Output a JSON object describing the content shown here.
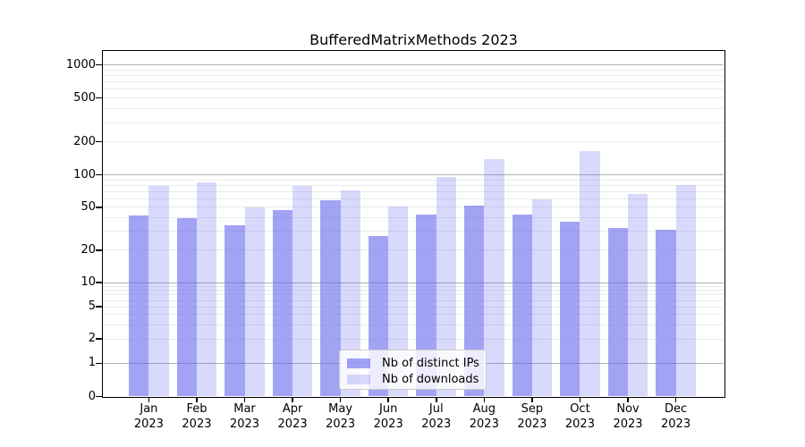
{
  "title": "BufferedMatrixMethods 2023",
  "chart_data": {
    "type": "bar",
    "title": "BufferedMatrixMethods 2023",
    "scale": "pseudo-log",
    "categories": [
      "Jan",
      "Feb",
      "Mar",
      "Apr",
      "May",
      "Jun",
      "Jul",
      "Aug",
      "Sep",
      "Oct",
      "Nov",
      "Dec"
    ],
    "year": "2023",
    "series": [
      {
        "name": "Nb of distinct IPs",
        "color": "rgba(102,102,238,0.6)",
        "values": [
          42,
          40,
          34,
          47,
          58,
          27,
          43,
          52,
          43,
          37,
          32,
          31
        ]
      },
      {
        "name": "Nb of downloads",
        "color": "rgba(102,102,238,0.25)",
        "values": [
          79,
          86,
          50,
          79,
          72,
          51,
          95,
          138,
          59,
          165,
          66,
          80
        ]
      }
    ],
    "yticks": [
      0,
      1,
      2,
      5,
      10,
      20,
      50,
      100,
      200,
      500,
      1000
    ],
    "ylim": [
      0,
      1000
    ],
    "grid": true,
    "legend_position": "lower-center-inside"
  },
  "colors": {
    "bar_base": "#6666ee",
    "major_grid": "#b0b0b0",
    "minor_grid": "#eaeaea",
    "axis": "#000000",
    "text": "#000000",
    "legend_border": "#cccccc",
    "legend_bg": "rgba(255,255,255,0.8)"
  }
}
